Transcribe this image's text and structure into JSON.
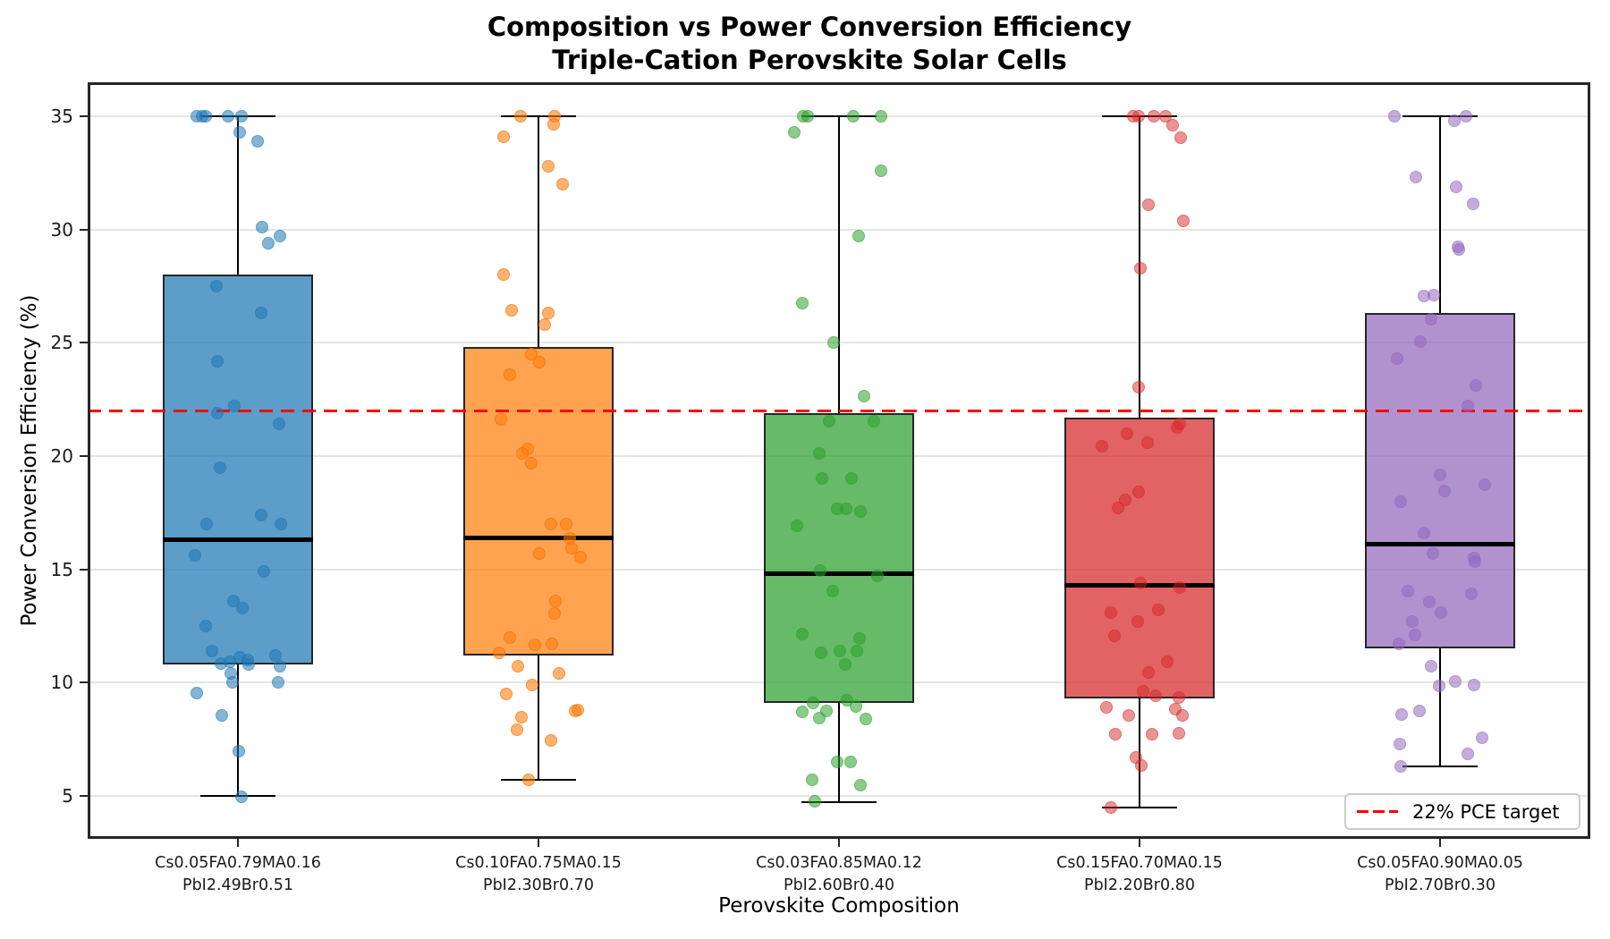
{
  "figure": {
    "background": "#ffffff",
    "spine_color": "#262626",
    "grid_color": "#e5e5e5"
  },
  "chart_data": {
    "type": "box",
    "title_line1": "Composition vs Power Conversion Efficiency",
    "title_line2": "Triple-Cation Perovskite Solar Cells",
    "xlabel": "Perovskite Composition",
    "ylabel": "Power Conversion Efficiency (%)",
    "yticks": [
      5,
      10,
      15,
      20,
      25,
      30,
      35
    ],
    "ylim": [
      3.1,
      36.5
    ],
    "grid": "horizontal",
    "legend_position": "lower right",
    "reference_line": {
      "value": 22,
      "style": "dashed",
      "color": "#ff0000",
      "label": "22% PCE target"
    },
    "groups": [
      {
        "label_line1": "Cs0.05FA0.79MA0.16",
        "label_line2": "PbI2.49Br0.51",
        "color": "#1f77b4",
        "box_fill": "rgba(31,119,180,0.72)",
        "point_fill": "rgba(31,119,180,0.55)",
        "point_edge": "rgba(31,119,180,0.35)",
        "box": {
          "whisker_low": 5.0,
          "q1": 10.8,
          "median": 16.3,
          "q3": 28.0,
          "whisker_high": 35.0
        },
        "points": [
          [
            35,
            -46
          ],
          [
            35,
            -40
          ],
          [
            35,
            -36
          ],
          [
            35,
            -11
          ],
          [
            35,
            4
          ],
          [
            34.3,
            2
          ],
          [
            33.9,
            22
          ],
          [
            30.1,
            27
          ],
          [
            29.7,
            47
          ],
          [
            29.4,
            34
          ],
          [
            27.5,
            -24
          ],
          [
            26.3,
            26
          ],
          [
            24.2,
            -23
          ],
          [
            22.2,
            -4
          ],
          [
            21.9,
            -23
          ],
          [
            21.4,
            46
          ],
          [
            19.5,
            -20
          ],
          [
            17.4,
            26
          ],
          [
            17,
            -35
          ],
          [
            17,
            48
          ],
          [
            15.6,
            -48
          ],
          [
            14.9,
            29
          ],
          [
            13.6,
            -5
          ],
          [
            13.3,
            5
          ],
          [
            12.5,
            -36
          ],
          [
            11.4,
            -29
          ],
          [
            11.2,
            42
          ],
          [
            11.1,
            2
          ],
          [
            11,
            11
          ],
          [
            10.9,
            -9
          ],
          [
            10.85,
            -19
          ],
          [
            10.8,
            12
          ],
          [
            10.7,
            47
          ],
          [
            10.4,
            -8
          ],
          [
            10,
            -6
          ],
          [
            10,
            45
          ],
          [
            9.55,
            -46
          ],
          [
            8.55,
            -18
          ],
          [
            6.95,
            1
          ],
          [
            4.95,
            4
          ]
        ]
      },
      {
        "label_line1": "Cs0.10FA0.75MA0.15",
        "label_line2": "PbI2.30Br0.70",
        "color": "#ff7f0e",
        "box_fill": "rgba(255,127,14,0.72)",
        "point_fill": "rgba(255,127,14,0.6)",
        "point_edge": "rgba(230,100,0,0.4)",
        "box": {
          "whisker_low": 5.7,
          "q1": 11.2,
          "median": 16.4,
          "q3": 24.8,
          "whisker_high": 35.0
        },
        "points": [
          [
            35,
            -20
          ],
          [
            35,
            18
          ],
          [
            34.65,
            17
          ],
          [
            34.1,
            -39
          ],
          [
            32.8,
            11
          ],
          [
            32,
            27
          ],
          [
            28,
            -39
          ],
          [
            26.45,
            -30
          ],
          [
            26.3,
            11
          ],
          [
            25.8,
            7
          ],
          [
            24.5,
            -8
          ],
          [
            24.15,
            1
          ],
          [
            23.6,
            -32
          ],
          [
            21.6,
            -42
          ],
          [
            20.3,
            -12
          ],
          [
            20.1,
            -18
          ],
          [
            19.7,
            -8
          ],
          [
            17,
            14
          ],
          [
            17,
            31
          ],
          [
            16.35,
            35
          ],
          [
            15.95,
            37
          ],
          [
            15.7,
            1
          ],
          [
            15.55,
            47
          ],
          [
            13.6,
            19
          ],
          [
            13.05,
            18
          ],
          [
            12,
            -32
          ],
          [
            11.7,
            15
          ],
          [
            11.65,
            -4
          ],
          [
            11.3,
            -44
          ],
          [
            10.7,
            -23
          ],
          [
            10.4,
            23
          ],
          [
            9.9,
            -7
          ],
          [
            9.5,
            -36
          ],
          [
            8.8,
            44
          ],
          [
            8.73,
            41
          ],
          [
            8.47,
            -19
          ],
          [
            7.92,
            -24
          ],
          [
            7.46,
            14
          ],
          [
            5.7,
            -11
          ]
        ]
      },
      {
        "label_line1": "Cs0.03FA0.85MA0.12",
        "label_line2": "PbI2.60Br0.40",
        "color": "#2ca02c",
        "box_fill": "rgba(44,160,44,0.72)",
        "point_fill": "rgba(44,160,44,0.55)",
        "point_edge": "rgba(44,160,44,0.35)",
        "box": {
          "whisker_low": 4.7,
          "q1": 9.1,
          "median": 14.8,
          "q3": 21.9,
          "whisker_high": 35.0
        },
        "points": [
          [
            35,
            -40
          ],
          [
            35,
            -35
          ],
          [
            35,
            16
          ],
          [
            35,
            47
          ],
          [
            34.3,
            -50
          ],
          [
            32.6,
            47
          ],
          [
            29.7,
            22
          ],
          [
            26.75,
            -41
          ],
          [
            25,
            -6
          ],
          [
            22.65,
            28
          ],
          [
            21.55,
            -11
          ],
          [
            21.55,
            39
          ],
          [
            20.1,
            -22
          ],
          [
            19,
            -19
          ],
          [
            19,
            14
          ],
          [
            17.65,
            -2
          ],
          [
            17.65,
            8
          ],
          [
            17.55,
            24
          ],
          [
            16.9,
            -47
          ],
          [
            14.95,
            -21
          ],
          [
            14.7,
            43
          ],
          [
            14.05,
            -7
          ],
          [
            12.15,
            -41
          ],
          [
            11.95,
            23
          ],
          [
            11.4,
            1
          ],
          [
            11.4,
            20
          ],
          [
            11.3,
            -20
          ],
          [
            10.8,
            7
          ],
          [
            9.2,
            9
          ],
          [
            9.1,
            -29
          ],
          [
            8.95,
            19
          ],
          [
            8.74,
            -14
          ],
          [
            8.72,
            -41
          ],
          [
            8.42,
            -22
          ],
          [
            8.4,
            30
          ],
          [
            6.5,
            -2
          ],
          [
            6.5,
            13
          ],
          [
            5.7,
            -30
          ],
          [
            5.45,
            24
          ],
          [
            4.74,
            -27
          ]
        ]
      },
      {
        "label_line1": "Cs0.15FA0.70MA0.15",
        "label_line2": "PbI2.20Br0.80",
        "color": "#d62728",
        "box_fill": "rgba(214,39,40,0.72)",
        "point_fill": "rgba(214,39,40,0.5)",
        "point_edge": "rgba(214,39,40,0.35)",
        "box": {
          "whisker_low": 4.5,
          "q1": 9.3,
          "median": 14.3,
          "q3": 21.7,
          "whisker_high": 35.0
        },
        "points": [
          [
            35,
            -7
          ],
          [
            35,
            -1
          ],
          [
            35,
            16
          ],
          [
            35,
            29
          ],
          [
            34.6,
            37
          ],
          [
            34.05,
            46
          ],
          [
            31.1,
            10
          ],
          [
            30.4,
            49
          ],
          [
            28.3,
            1
          ],
          [
            23.05,
            -1
          ],
          [
            21.4,
            45
          ],
          [
            21.25,
            42
          ],
          [
            21,
            -14
          ],
          [
            20.6,
            9
          ],
          [
            20.45,
            -42
          ],
          [
            18.4,
            -1
          ],
          [
            18.05,
            -16
          ],
          [
            17.7,
            -24
          ],
          [
            14.4,
            1
          ],
          [
            14.2,
            45
          ],
          [
            13.2,
            21
          ],
          [
            13.1,
            -32
          ],
          [
            12.7,
            -2
          ],
          [
            12.05,
            -28
          ],
          [
            10.9,
            31
          ],
          [
            10.45,
            10
          ],
          [
            9.6,
            4
          ],
          [
            9.4,
            18
          ],
          [
            9.35,
            44
          ],
          [
            8.9,
            -37
          ],
          [
            8.83,
            40
          ],
          [
            8.56,
            -12
          ],
          [
            8.56,
            48
          ],
          [
            7.75,
            44
          ],
          [
            7.73,
            -27
          ],
          [
            7.7,
            14
          ],
          [
            6.7,
            -4
          ],
          [
            6.35,
            2
          ],
          [
            4.5,
            -32
          ]
        ]
      },
      {
        "label_line1": "Cs0.05FA0.90MA0.05",
        "label_line2": "PbI2.70Br0.30",
        "color": "#9467bd",
        "box_fill": "rgba(148,103,189,0.72)",
        "point_fill": "rgba(148,103,189,0.55)",
        "point_edge": "rgba(148,103,189,0.35)",
        "box": {
          "whisker_low": 6.3,
          "q1": 11.5,
          "median": 16.1,
          "q3": 26.3,
          "whisker_high": 35.0
        },
        "points": [
          [
            35,
            -51
          ],
          [
            35,
            29
          ],
          [
            34.8,
            16
          ],
          [
            32.3,
            -27
          ],
          [
            31.9,
            18
          ],
          [
            31.15,
            37
          ],
          [
            29.25,
            20
          ],
          [
            29.1,
            21
          ],
          [
            27.1,
            -7
          ],
          [
            27.05,
            -18
          ],
          [
            26.05,
            -10
          ],
          [
            25.05,
            -22
          ],
          [
            24.3,
            -48
          ],
          [
            23.1,
            40
          ],
          [
            22.2,
            31
          ],
          [
            19.15,
            0
          ],
          [
            18.75,
            50
          ],
          [
            18.45,
            5
          ],
          [
            18,
            -44
          ],
          [
            16.6,
            -18
          ],
          [
            15.7,
            -8
          ],
          [
            15.5,
            38
          ],
          [
            15.35,
            39
          ],
          [
            14.05,
            -36
          ],
          [
            13.9,
            35
          ],
          [
            13.55,
            -12
          ],
          [
            13.1,
            1
          ],
          [
            12.7,
            -31
          ],
          [
            12.1,
            -28
          ],
          [
            11.7,
            -46
          ],
          [
            10.7,
            -10
          ],
          [
            10.05,
            17
          ],
          [
            9.9,
            38
          ],
          [
            9.85,
            -1
          ],
          [
            8.73,
            -23
          ],
          [
            8.6,
            -43
          ],
          [
            7.55,
            47
          ],
          [
            7.3,
            -45
          ],
          [
            6.85,
            31
          ],
          [
            6.3,
            -44
          ]
        ]
      }
    ]
  }
}
